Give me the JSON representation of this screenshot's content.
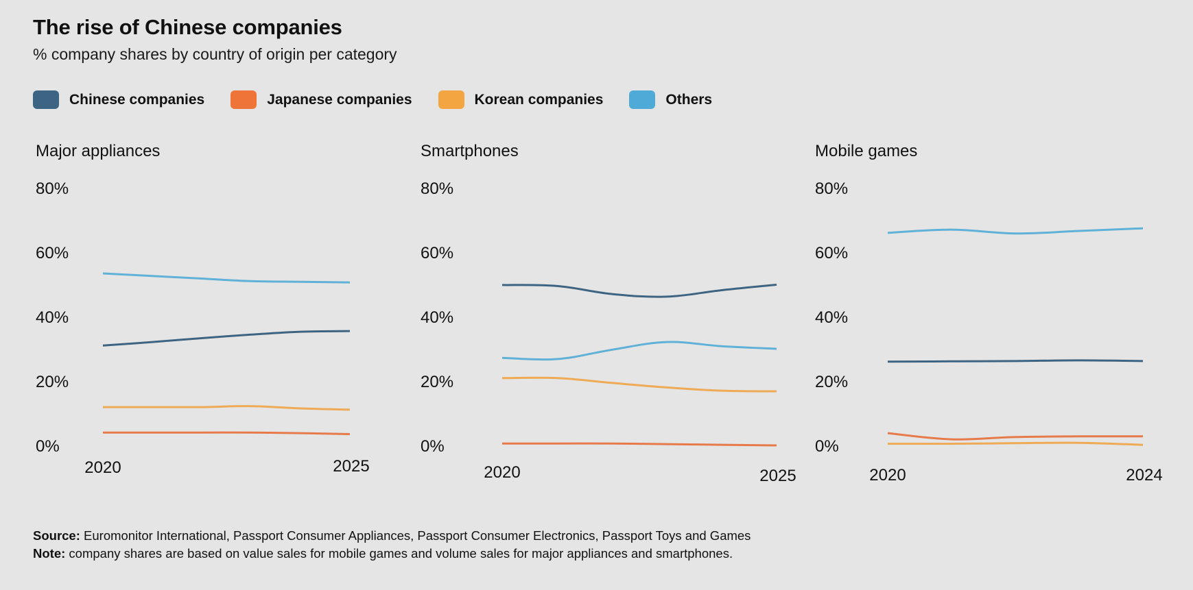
{
  "header": {
    "title": "The rise of Chinese companies",
    "subtitle": "% company shares by country of origin per category"
  },
  "legend": [
    {
      "label": "Chinese companies",
      "color": "#3d6483"
    },
    {
      "label": "Japanese companies",
      "color": "#ee7537"
    },
    {
      "label": "Korean companies",
      "color": "#f2a540"
    },
    {
      "label": "Others",
      "color": "#4eaad6"
    }
  ],
  "footer": {
    "source_label": "Source:",
    "source_text": " Euromonitor International, Passport Consumer Appliances, Passport Consumer Electronics, Passport Toys and Games",
    "note_label": "Note:",
    "note_text": " company shares are based on value sales for mobile games and volume sales for major appliances and smartphones."
  },
  "chart_data": [
    {
      "type": "line",
      "title": "Major appliances",
      "xlabel": "",
      "ylabel": "",
      "ylim": [
        0,
        80
      ],
      "yticks": [
        "0%",
        "20%",
        "40%",
        "60%",
        "80%"
      ],
      "xtick_labels": [
        "2020",
        "2025"
      ],
      "x": [
        2020,
        2021,
        2022,
        2023,
        2024,
        2025
      ],
      "grid": false,
      "series": [
        {
          "name": "Chinese companies",
          "color": "#3d6483",
          "values": [
            31.0,
            32.1,
            33.3,
            34.4,
            35.3,
            35.5
          ]
        },
        {
          "name": "Japanese companies",
          "color": "#e77a4b",
          "values": [
            4.0,
            4.0,
            4.0,
            4.0,
            3.8,
            3.5
          ]
        },
        {
          "name": "Korean companies",
          "color": "#eeaa55",
          "values": [
            11.9,
            11.9,
            11.9,
            12.2,
            11.5,
            11.1
          ]
        },
        {
          "name": "Others",
          "color": "#5fb1d8",
          "values": [
            53.4,
            52.6,
            51.8,
            51.0,
            50.8,
            50.6
          ]
        }
      ]
    },
    {
      "type": "line",
      "title": "Smartphones",
      "xlabel": "",
      "ylabel": "",
      "ylim": [
        0,
        80
      ],
      "yticks": [
        "0%",
        "20%",
        "40%",
        "60%",
        "80%"
      ],
      "xtick_labels": [
        "2020",
        "2025"
      ],
      "x": [
        2020,
        2021,
        2022,
        2023,
        2024,
        2025
      ],
      "grid": false,
      "series": [
        {
          "name": "Chinese companies",
          "color": "#3d6483",
          "values": [
            49.8,
            49.5,
            47.0,
            46.2,
            48.2,
            49.9
          ]
        },
        {
          "name": "Japanese companies",
          "color": "#e77a4b",
          "values": [
            0.6,
            0.6,
            0.6,
            0.4,
            0.2,
            0.0
          ]
        },
        {
          "name": "Korean companies",
          "color": "#eeaa55",
          "values": [
            20.9,
            20.9,
            19.4,
            18.0,
            17.0,
            16.8
          ]
        },
        {
          "name": "Others",
          "color": "#5fb1d8",
          "values": [
            27.2,
            26.8,
            29.7,
            32.1,
            30.8,
            30.0
          ]
        }
      ]
    },
    {
      "type": "line",
      "title": "Mobile games",
      "xlabel": "",
      "ylabel": "",
      "ylim": [
        0,
        80
      ],
      "yticks": [
        "0%",
        "20%",
        "40%",
        "60%",
        "80%"
      ],
      "xtick_labels": [
        "2020",
        "2024"
      ],
      "x": [
        2020,
        2021,
        2022,
        2023,
        2024
      ],
      "grid": false,
      "series": [
        {
          "name": "Chinese companies",
          "color": "#3d6483",
          "values": [
            26.0,
            26.1,
            26.2,
            26.4,
            26.2
          ]
        },
        {
          "name": "Japanese companies",
          "color": "#e77a4b",
          "values": [
            3.8,
            1.9,
            2.6,
            2.8,
            2.8
          ]
        },
        {
          "name": "Korean companies",
          "color": "#eeaa55",
          "values": [
            0.5,
            0.5,
            0.7,
            0.8,
            0.2
          ]
        },
        {
          "name": "Others",
          "color": "#5fb1d8",
          "values": [
            66.0,
            67.0,
            65.8,
            66.6,
            67.4
          ]
        }
      ]
    }
  ]
}
